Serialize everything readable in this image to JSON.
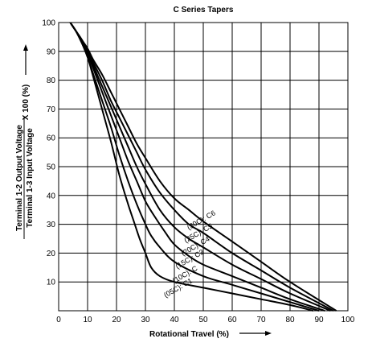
{
  "chart_data": {
    "type": "line",
    "title": "C Series Tapers",
    "xlabel": "Rotational Travel (%)",
    "ylabel": {
      "numerator": "Terminal 1-2 Output Voltage",
      "denominator": "Terminal 1-3 Input Voltage",
      "suffix": "X 100 (%)"
    },
    "xlim": [
      0,
      100
    ],
    "ylim": [
      0,
      100
    ],
    "x_ticks": [
      0,
      10,
      20,
      30,
      40,
      50,
      60,
      70,
      80,
      90,
      100
    ],
    "y_ticks": [
      10,
      20,
      30,
      40,
      50,
      60,
      70,
      80,
      90,
      100
    ],
    "grid": true,
    "series": [
      {
        "name": "(05C): C1",
        "points": [
          [
            4,
            100
          ],
          [
            6,
            97
          ],
          [
            8,
            93
          ],
          [
            10,
            88
          ],
          [
            12,
            81
          ],
          [
            15,
            70
          ],
          [
            18,
            59
          ],
          [
            21,
            47
          ],
          [
            24,
            37
          ],
          [
            26,
            31
          ],
          [
            28,
            25
          ],
          [
            30,
            20
          ],
          [
            32,
            15
          ],
          [
            35,
            12
          ],
          [
            40,
            10
          ],
          [
            50,
            8
          ],
          [
            60,
            6
          ],
          [
            70,
            4
          ],
          [
            80,
            2
          ],
          [
            88,
            0
          ]
        ]
      },
      {
        "name": "(10C): C",
        "points": [
          [
            4,
            100
          ],
          [
            6,
            97
          ],
          [
            8,
            93
          ],
          [
            10,
            88
          ],
          [
            12,
            82
          ],
          [
            15,
            73
          ],
          [
            18,
            64
          ],
          [
            21,
            54
          ],
          [
            24,
            45
          ],
          [
            27,
            37
          ],
          [
            30,
            30
          ],
          [
            32,
            26
          ],
          [
            35,
            22
          ],
          [
            40,
            17
          ],
          [
            50,
            12
          ],
          [
            60,
            9
          ],
          [
            70,
            6
          ],
          [
            80,
            3
          ],
          [
            90,
            0
          ]
        ]
      },
      {
        "name": "(15C): C3",
        "points": [
          [
            4,
            100
          ],
          [
            6,
            97
          ],
          [
            8,
            93
          ],
          [
            10,
            89
          ],
          [
            12,
            84
          ],
          [
            15,
            76
          ],
          [
            18,
            68
          ],
          [
            21,
            60
          ],
          [
            24,
            52
          ],
          [
            27,
            45
          ],
          [
            30,
            38
          ],
          [
            33,
            33
          ],
          [
            37,
            27
          ],
          [
            40,
            23
          ],
          [
            45,
            19
          ],
          [
            50,
            16
          ],
          [
            60,
            12
          ],
          [
            70,
            8
          ],
          [
            80,
            4
          ],
          [
            92,
            0
          ]
        ]
      },
      {
        "name": "(20C): C4",
        "points": [
          [
            4,
            100
          ],
          [
            6,
            97
          ],
          [
            8,
            94
          ],
          [
            10,
            90
          ],
          [
            12,
            85
          ],
          [
            15,
            78
          ],
          [
            18,
            71
          ],
          [
            21,
            64
          ],
          [
            24,
            57
          ],
          [
            27,
            50
          ],
          [
            30,
            44
          ],
          [
            35,
            35
          ],
          [
            40,
            29
          ],
          [
            45,
            25
          ],
          [
            50,
            22
          ],
          [
            60,
            16
          ],
          [
            70,
            11
          ],
          [
            80,
            6
          ],
          [
            94,
            0
          ]
        ]
      },
      {
        "name": "(25C): C5",
        "points": [
          [
            4,
            100
          ],
          [
            6,
            97
          ],
          [
            8,
            94
          ],
          [
            10,
            90
          ],
          [
            12,
            86
          ],
          [
            15,
            80
          ],
          [
            18,
            73
          ],
          [
            21,
            67
          ],
          [
            24,
            61
          ],
          [
            27,
            55
          ],
          [
            30,
            49
          ],
          [
            35,
            41
          ],
          [
            40,
            35
          ],
          [
            45,
            30
          ],
          [
            50,
            27
          ],
          [
            60,
            20
          ],
          [
            70,
            14
          ],
          [
            80,
            8
          ],
          [
            95,
            0
          ]
        ]
      },
      {
        "name": "(30C): C6",
        "points": [
          [
            4,
            100
          ],
          [
            6,
            97
          ],
          [
            8,
            94
          ],
          [
            10,
            91
          ],
          [
            12,
            87
          ],
          [
            15,
            82
          ],
          [
            18,
            76
          ],
          [
            21,
            70
          ],
          [
            24,
            64
          ],
          [
            27,
            58
          ],
          [
            30,
            53
          ],
          [
            35,
            45
          ],
          [
            40,
            39
          ],
          [
            45,
            35
          ],
          [
            50,
            31
          ],
          [
            60,
            24
          ],
          [
            70,
            17
          ],
          [
            80,
            10
          ],
          [
            96,
            0
          ]
        ]
      }
    ],
    "curve_labels": [
      {
        "text": "(30C): C6",
        "x": 45,
        "y": 28,
        "angle_deg": -30
      },
      {
        "text": "(25C): C5",
        "x": 44,
        "y": 23.5,
        "angle_deg": -30
      },
      {
        "text": "(20C): C4",
        "x": 43,
        "y": 19,
        "angle_deg": -30
      },
      {
        "text": "(15C): C3",
        "x": 41,
        "y": 14.5,
        "angle_deg": -30
      },
      {
        "text": "(10C): C",
        "x": 40,
        "y": 9.5,
        "angle_deg": -30
      },
      {
        "text": "(05C): C1",
        "x": 37,
        "y": 4.5,
        "angle_deg": -30
      }
    ]
  }
}
